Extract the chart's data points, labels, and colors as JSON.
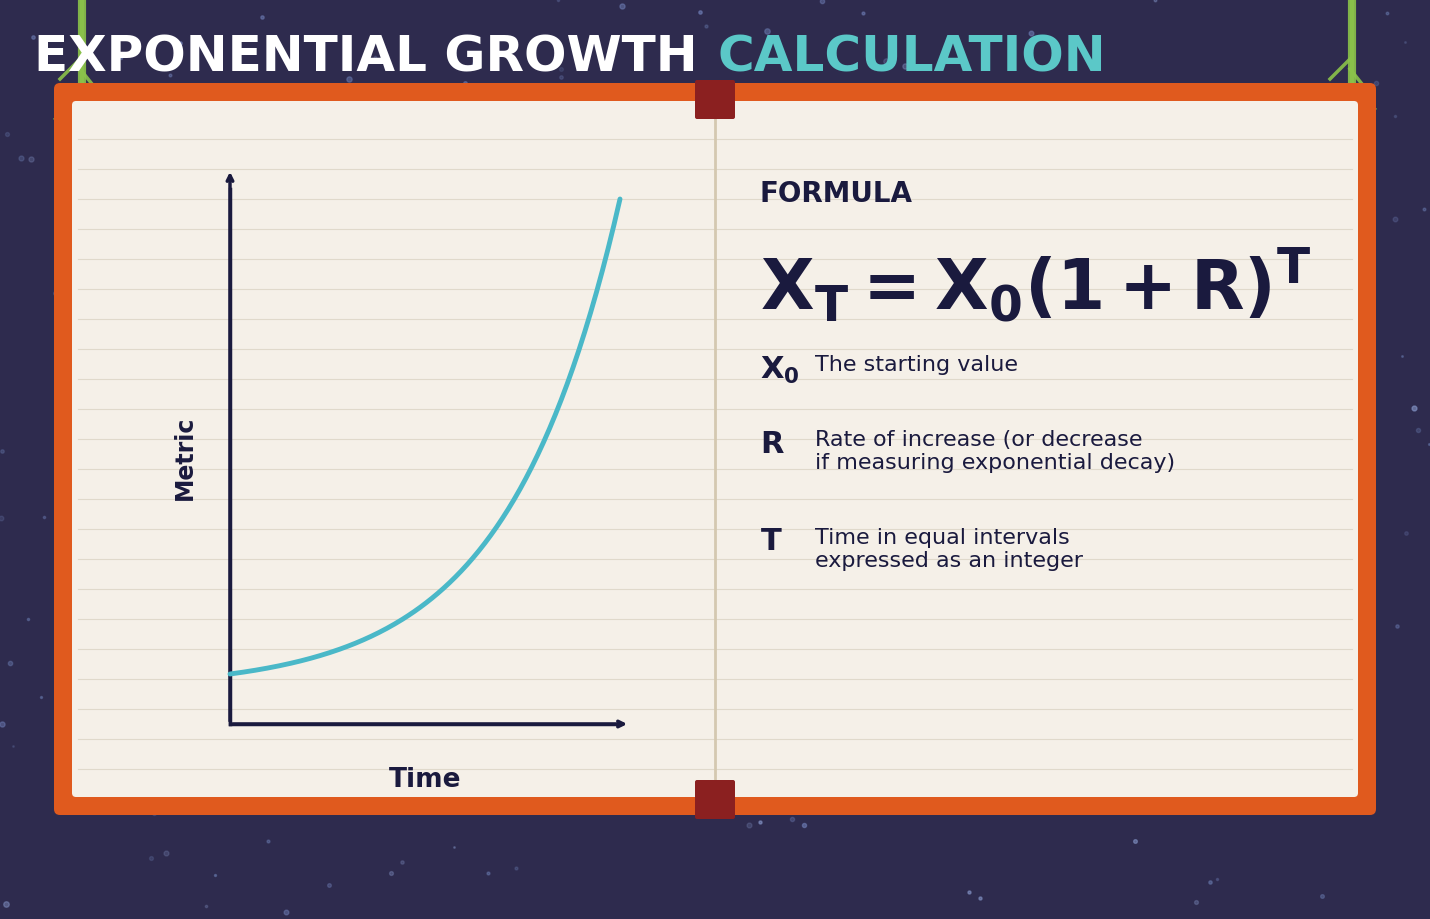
{
  "bg_color": "#2e2b4e",
  "title_white": "EXPONENTIAL GROWTH ",
  "title_teal": "CALCULATION",
  "title_white_color": "#ffffff",
  "title_teal_color": "#5bc8c8",
  "title_fontsize": 36,
  "book_bg": "#f5f0e8",
  "book_border_outer": "#e05a1e",
  "book_border_inner": "#c8431a",
  "book_spine_color": "#8b2020",
  "line_color": "#1a1a3e",
  "curve_color": "#4ab8c8",
  "formula_label": "FORMULA",
  "formula_label_color": "#1a1a3e",
  "formula_label_fontsize": 20,
  "formula_fontsize": 52,
  "formula_color": "#1a1a3e",
  "desc_fontsize": 16,
  "desc_color": "#1a1a3e",
  "metric_label": "Metric",
  "time_label": "Time",
  "axis_label_color": "#1a1a3e",
  "axis_label_fontsize": 17,
  "x0_desc": "The starting value",
  "r_desc": "Rate of increase (or decrease\nif measuring exponential decay)",
  "t_desc": "Time in equal intervals\nexpressed as an integer",
  "dot_color": "#a8b8d8",
  "line_color_notebook": "#d8d0c0"
}
